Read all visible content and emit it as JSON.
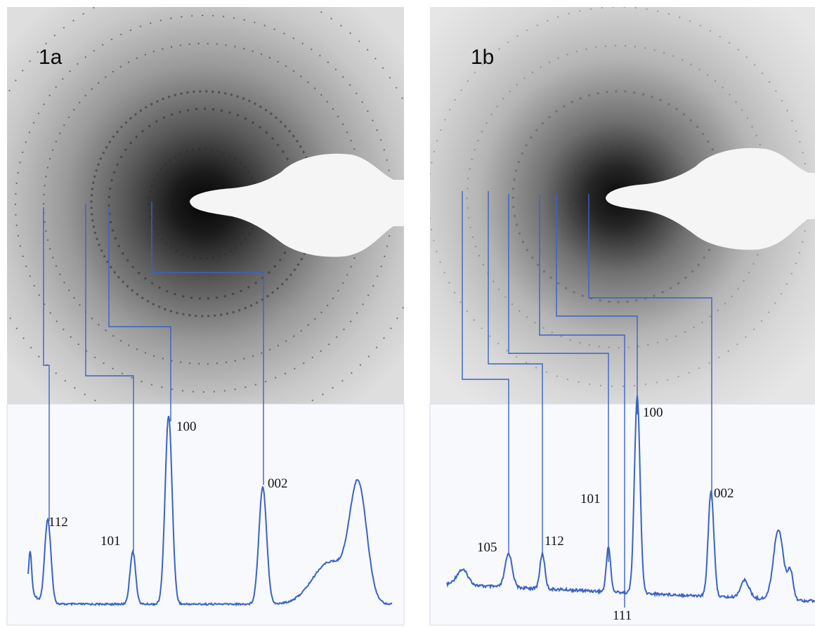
{
  "panels": [
    {
      "label": "1a",
      "peaks": [
        "112",
        "101",
        "100",
        "002"
      ]
    },
    {
      "label": "1b",
      "peaks": [
        "105",
        "112",
        "101",
        "111",
        "100",
        "002"
      ]
    }
  ],
  "colors": {
    "trace": "#3a63c4",
    "guide": "#3a63c4",
    "plot_bg": "#f7f9fd",
    "text": "#111111"
  }
}
